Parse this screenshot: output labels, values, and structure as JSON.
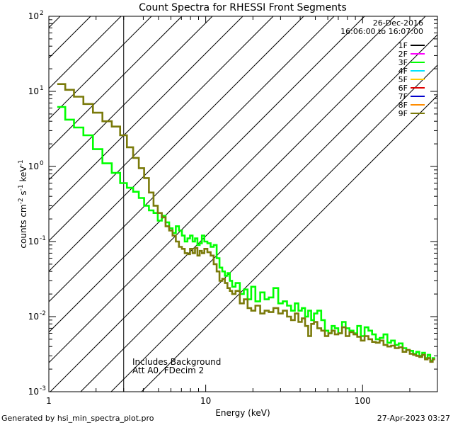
{
  "chart_data": {
    "type": "line",
    "title": "Count Spectra for RHESSI Front Segments",
    "xlabel": "Energy (keV)",
    "ylabel": "counts cm^-2 s^-1 keV^-1",
    "xscale": "log",
    "yscale": "log",
    "xlim": [
      1,
      300
    ],
    "ylim": [
      0.001,
      100
    ],
    "x_ticks": [
      {
        "value": 1,
        "label": "1"
      },
      {
        "value": 10,
        "label": "10"
      },
      {
        "value": 100,
        "label": "100"
      }
    ],
    "y_ticks": [
      {
        "value": 0.001,
        "base": "10",
        "exp": "-3"
      },
      {
        "value": 0.01,
        "base": "10",
        "exp": "-2"
      },
      {
        "value": 0.1,
        "base": "10",
        "exp": "-1"
      },
      {
        "value": 1,
        "base": "10",
        "exp": "0"
      },
      {
        "value": 10,
        "base": "10",
        "exp": "1"
      },
      {
        "value": 100,
        "base": "10",
        "exp": "2"
      }
    ],
    "hatched_region": {
      "x_min": 1,
      "x_max": 3
    },
    "legend_header": {
      "date": "26-Dec-2016",
      "time_range": "16:06:00 to 16:07:00"
    },
    "legend": [
      {
        "name": "1F",
        "color": "#000000"
      },
      {
        "name": "2F",
        "color": "#ff00ff"
      },
      {
        "name": "3F",
        "color": "#00ff00"
      },
      {
        "name": "4F",
        "color": "#00e5ff"
      },
      {
        "name": "5F",
        "color": "#ffcc00"
      },
      {
        "name": "6F",
        "color": "#e00000"
      },
      {
        "name": "7F",
        "color": "#0000cc"
      },
      {
        "name": "8F",
        "color": "#ff8c00"
      },
      {
        "name": "9F",
        "color": "#7a7a0a"
      }
    ],
    "series": [
      {
        "name": "3F",
        "color": "#00ff00",
        "x": [
          1.2,
          1.35,
          1.55,
          1.78,
          2.05,
          2.35,
          2.7,
          3.0,
          3.3,
          3.6,
          3.9,
          4.2,
          4.5,
          4.8,
          5.1,
          5.4,
          5.7,
          6.0,
          6.3,
          6.6,
          6.9,
          7.2,
          7.5,
          7.8,
          8.1,
          8.4,
          8.7,
          9.0,
          9.3,
          9.6,
          10.0,
          10.5,
          11.0,
          11.5,
          12.0,
          12.5,
          13.0,
          13.5,
          14.0,
          14.5,
          15.0,
          16.0,
          17.0,
          18.0,
          19.0,
          20.0,
          21.5,
          23.0,
          24.5,
          26.0,
          28.0,
          30.0,
          32.0,
          34.0,
          36.0,
          38.0,
          40.0,
          42.0,
          44.0,
          46.0,
          48.0,
          50.0,
          53.0,
          56.0,
          59.0,
          62.0,
          65.0,
          68.0,
          72.0,
          76.0,
          80.0,
          85.0,
          90.0,
          95.0,
          100.0,
          106.0,
          112.0,
          118.0,
          125.0,
          132.0,
          140.0,
          148.0,
          156.0,
          165.0,
          175.0,
          185.0,
          195.0,
          205.0,
          215.0,
          225.0,
          235.0,
          245.0,
          255.0,
          265.0,
          275.0,
          285.0
        ],
        "values": [
          6.2,
          4.2,
          3.3,
          2.6,
          1.7,
          1.1,
          0.82,
          0.6,
          0.52,
          0.46,
          0.38,
          0.3,
          0.26,
          0.24,
          0.19,
          0.22,
          0.18,
          0.15,
          0.13,
          0.16,
          0.14,
          0.12,
          0.1,
          0.11,
          0.12,
          0.1,
          0.11,
          0.09,
          0.095,
          0.12,
          0.1,
          0.095,
          0.085,
          0.09,
          0.06,
          0.045,
          0.04,
          0.035,
          0.038,
          0.03,
          0.025,
          0.028,
          0.02,
          0.023,
          0.017,
          0.025,
          0.016,
          0.021,
          0.017,
          0.018,
          0.024,
          0.015,
          0.016,
          0.014,
          0.012,
          0.015,
          0.012,
          0.013,
          0.01,
          0.012,
          0.009,
          0.011,
          0.012,
          0.009,
          0.0065,
          0.006,
          0.0075,
          0.007,
          0.006,
          0.0085,
          0.007,
          0.0065,
          0.006,
          0.0075,
          0.0055,
          0.0072,
          0.0065,
          0.0058,
          0.005,
          0.0052,
          0.0058,
          0.0045,
          0.0048,
          0.0042,
          0.0044,
          0.0038,
          0.0036,
          0.0035,
          0.0032,
          0.0034,
          0.003,
          0.0033,
          0.0028,
          0.0031,
          0.0026,
          0.0028
        ]
      },
      {
        "name": "9F",
        "color": "#7a7a0a",
        "x": [
          1.2,
          1.35,
          1.55,
          1.78,
          2.05,
          2.35,
          2.7,
          3.0,
          3.3,
          3.6,
          3.9,
          4.2,
          4.5,
          4.8,
          5.1,
          5.4,
          5.7,
          6.0,
          6.3,
          6.6,
          6.9,
          7.2,
          7.5,
          7.8,
          8.1,
          8.4,
          8.7,
          9.0,
          9.3,
          9.6,
          10.0,
          10.5,
          11.0,
          11.5,
          12.0,
          12.5,
          13.0,
          13.5,
          14.0,
          14.5,
          15.0,
          16.0,
          17.0,
          18.0,
          19.0,
          20.0,
          21.5,
          23.0,
          24.5,
          26.0,
          28.0,
          30.0,
          32.0,
          34.0,
          36.0,
          38.0,
          40.0,
          42.0,
          44.0,
          46.0,
          48.0,
          50.0,
          53.0,
          56.0,
          59.0,
          62.0,
          65.0,
          68.0,
          72.0,
          76.0,
          80.0,
          85.0,
          90.0,
          95.0,
          100.0,
          106.0,
          112.0,
          118.0,
          125.0,
          132.0,
          140.0,
          148.0,
          156.0,
          165.0,
          175.0,
          185.0,
          195.0,
          205.0,
          215.0,
          225.0,
          235.0,
          245.0,
          255.0,
          265.0,
          275.0,
          285.0
        ],
        "values": [
          12.5,
          10.5,
          8.5,
          6.8,
          5.2,
          4.0,
          3.4,
          2.6,
          1.8,
          1.3,
          0.95,
          0.7,
          0.45,
          0.3,
          0.24,
          0.21,
          0.16,
          0.14,
          0.12,
          0.1,
          0.085,
          0.08,
          0.07,
          0.068,
          0.08,
          0.07,
          0.082,
          0.065,
          0.075,
          0.07,
          0.08,
          0.072,
          0.065,
          0.05,
          0.04,
          0.03,
          0.032,
          0.028,
          0.024,
          0.022,
          0.02,
          0.022,
          0.015,
          0.017,
          0.013,
          0.012,
          0.014,
          0.011,
          0.012,
          0.0115,
          0.013,
          0.011,
          0.012,
          0.01,
          0.009,
          0.011,
          0.0085,
          0.0095,
          0.0075,
          0.0055,
          0.008,
          0.0085,
          0.007,
          0.0065,
          0.0055,
          0.006,
          0.0065,
          0.0058,
          0.006,
          0.0072,
          0.0055,
          0.0062,
          0.0058,
          0.0054,
          0.0048,
          0.0055,
          0.005,
          0.0046,
          0.0045,
          0.0048,
          0.0042,
          0.004,
          0.0041,
          0.0038,
          0.0039,
          0.0034,
          0.0036,
          0.0032,
          0.0031,
          0.003,
          0.0029,
          0.0031,
          0.0027,
          0.0028,
          0.0025,
          0.0027
        ]
      }
    ],
    "annotations": [
      "Includes Background",
      "Att A0, FDecim 2"
    ]
  },
  "footer": {
    "generated_by": "Generated by hsi_min_spectra_plot.pro",
    "timestamp": "27-Apr-2023 03:27"
  }
}
